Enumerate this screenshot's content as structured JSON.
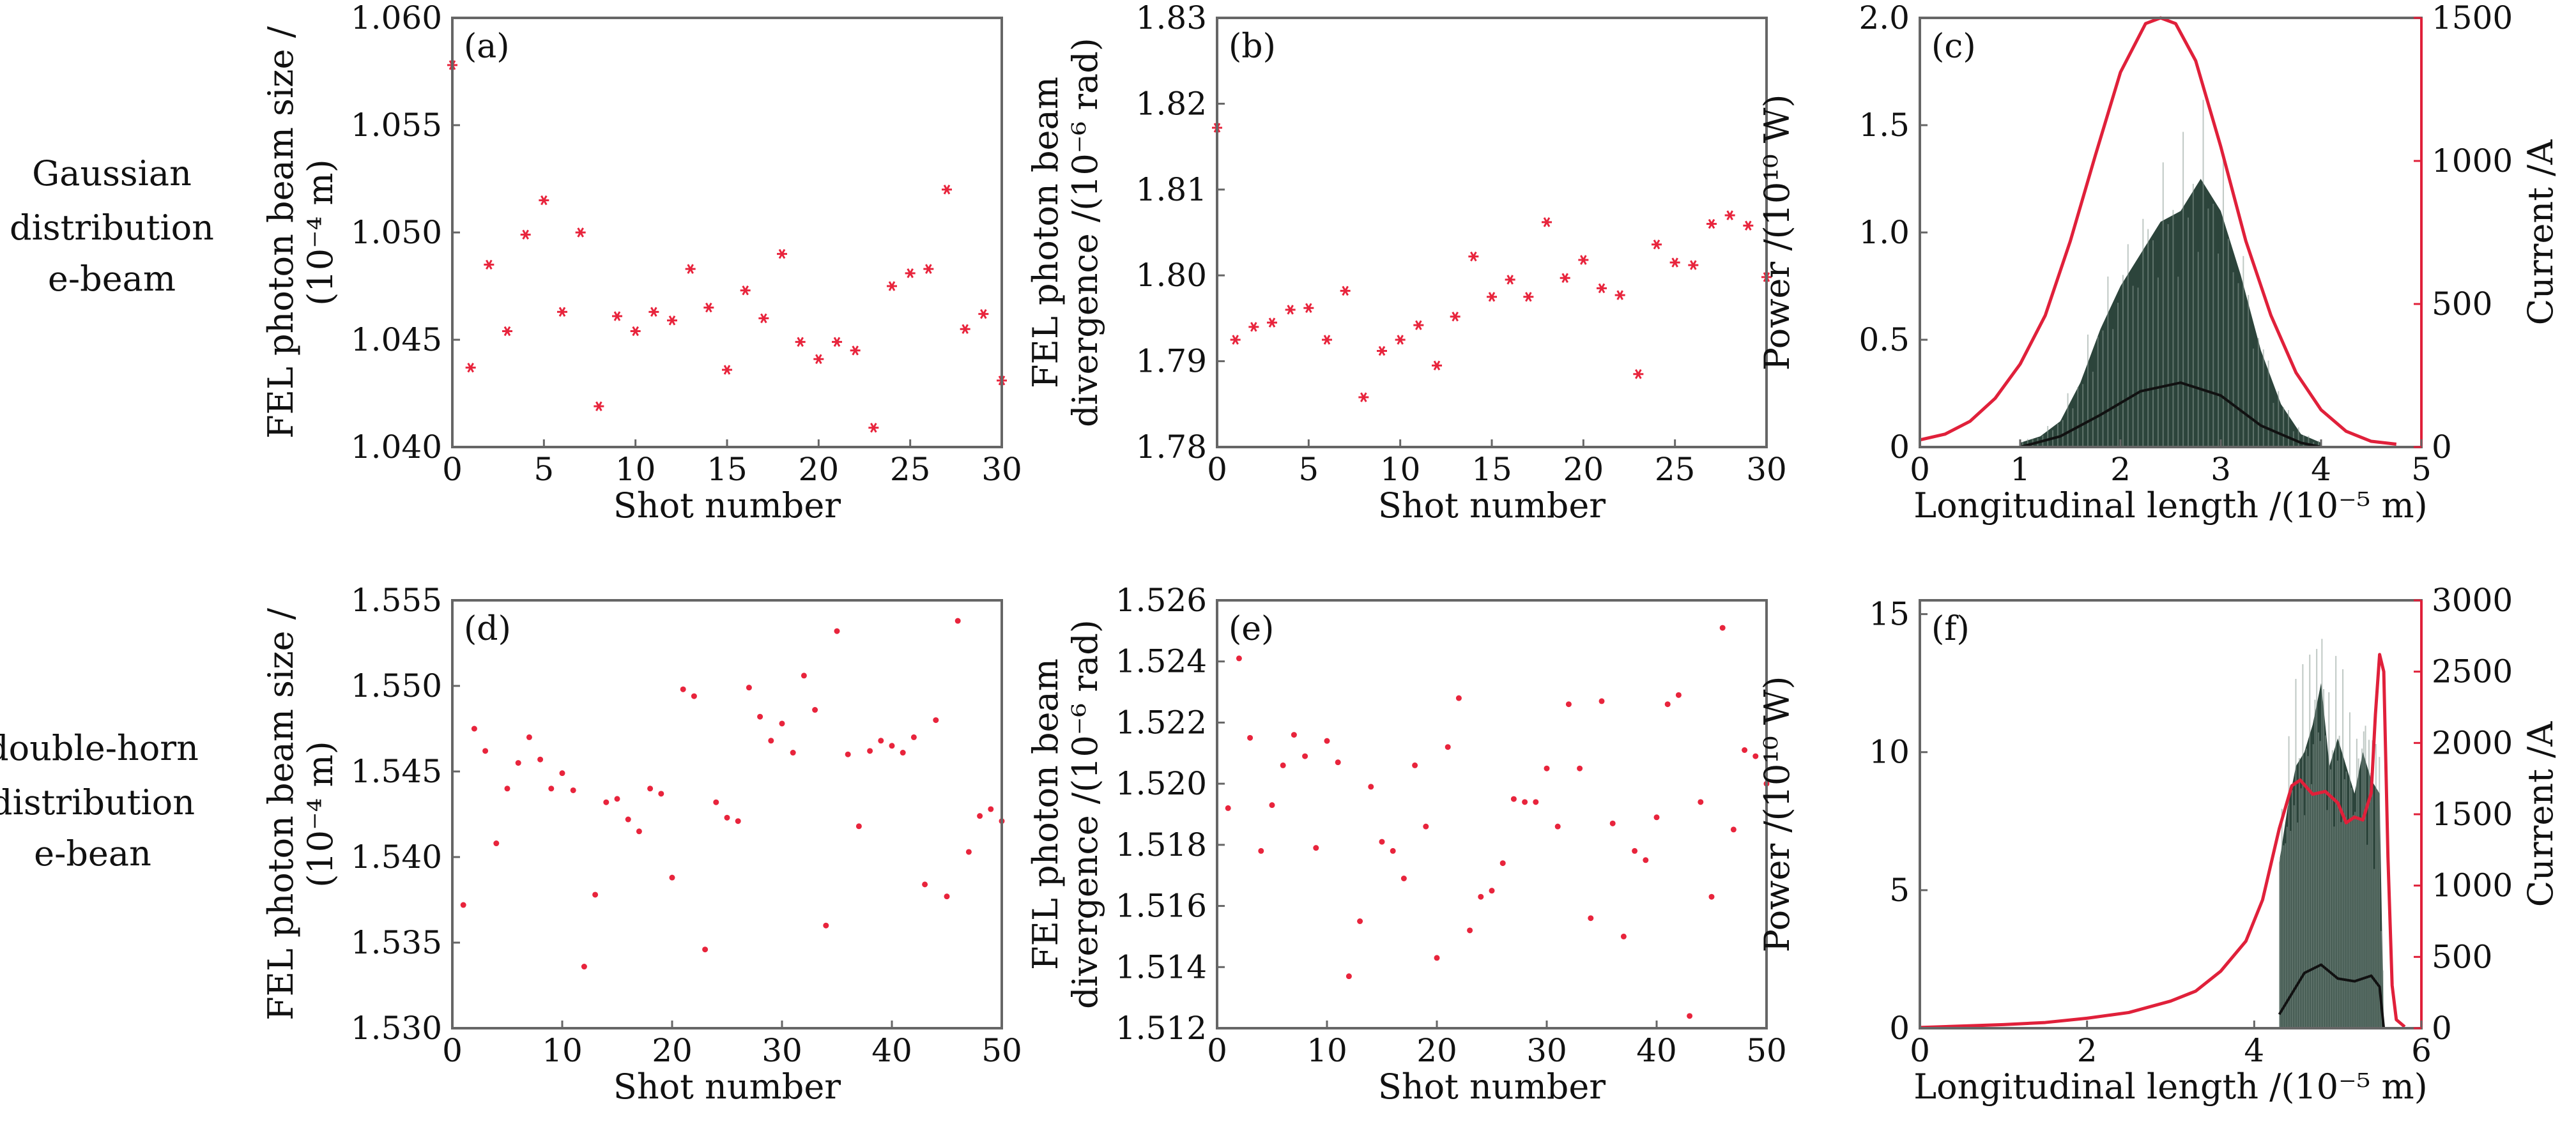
{
  "row_labels": [
    [
      "Gaussian",
      "distribution",
      "e-beam"
    ],
    [
      "double-horn",
      "distribution",
      "e-bean"
    ]
  ],
  "colors": {
    "marker": "#e8243c",
    "current_line": "#e0203a",
    "power_fill": "#213a30",
    "power_mean": "#111111",
    "frame": "#666666",
    "right_axis": "#e0203a"
  },
  "chart_data": [
    {
      "id": "a",
      "tag": "(a)",
      "type": "scatter",
      "marker": "asterisk",
      "ylabel": [
        "FEL photon beam size /",
        "(10⁻⁴ m)"
      ],
      "xlabel": "Shot number",
      "xlim": [
        0,
        30
      ],
      "ylim": [
        1.04,
        1.06
      ],
      "xticks": [
        "0",
        "5",
        "10",
        "15",
        "20",
        "25",
        "30"
      ],
      "yticks": [
        "1.040",
        "1.045",
        "1.050",
        "1.055",
        "1.060"
      ],
      "x": [
        0,
        1,
        2,
        3,
        4,
        5,
        6,
        7,
        8,
        9,
        10,
        11,
        12,
        13,
        14,
        15,
        16,
        17,
        18,
        19,
        20,
        21,
        22,
        23,
        24,
        25,
        26,
        27,
        28,
        29,
        30
      ],
      "y": [
        1.0578,
        1.0437,
        1.0485,
        1.0454,
        1.0499,
        1.0515,
        1.0463,
        1.05,
        1.0419,
        1.0461,
        1.0454,
        1.0463,
        1.0459,
        1.0483,
        1.0465,
        1.0436,
        1.0473,
        1.046,
        1.049,
        1.0449,
        1.0441,
        1.0449,
        1.0445,
        1.0409,
        1.0475,
        1.0481,
        1.0483,
        1.052,
        1.0455,
        1.0462,
        1.0431
      ]
    },
    {
      "id": "b",
      "tag": "(b)",
      "type": "scatter",
      "marker": "asterisk",
      "ylabel": [
        "FEL photon beam",
        "divergence /(10⁻⁶ rad)"
      ],
      "xlabel": "Shot number",
      "xlim": [
        0,
        30
      ],
      "ylim": [
        1.78,
        1.83
      ],
      "xticks": [
        "0",
        "5",
        "10",
        "15",
        "20",
        "25",
        "30"
      ],
      "yticks": [
        "1.78",
        "1.79",
        "1.80",
        "1.81",
        "1.82",
        "1.83"
      ],
      "x": [
        0,
        1,
        2,
        3,
        4,
        5,
        6,
        7,
        8,
        9,
        10,
        11,
        12,
        13,
        14,
        15,
        16,
        17,
        18,
        19,
        20,
        21,
        22,
        23,
        24,
        25,
        26,
        27,
        28,
        29,
        30
      ],
      "y": [
        1.8172,
        1.7925,
        1.794,
        1.7945,
        1.796,
        1.7962,
        1.7925,
        1.7982,
        1.7858,
        1.7912,
        1.7925,
        1.7942,
        1.7895,
        1.7952,
        1.8022,
        1.7975,
        1.7995,
        1.7975,
        1.8062,
        1.7997,
        1.8018,
        1.7985,
        1.7977,
        1.7885,
        1.8036,
        1.8015,
        1.8012,
        1.806,
        1.807,
        1.8058,
        1.7998
      ]
    },
    {
      "id": "c",
      "tag": "(c)",
      "type": "area",
      "ylabel": "Power /(10¹⁰ W)",
      "ylabel_right": "Current /A",
      "xlabel": "Longitudinal length /(10⁻⁵ m)",
      "xlim": [
        0,
        5
      ],
      "ylim": [
        0,
        2.0
      ],
      "ylim_right": [
        0,
        1500
      ],
      "xticks": [
        "0",
        "1",
        "2",
        "3",
        "4",
        "5"
      ],
      "yticks": [
        "0",
        "0.5",
        "1.0",
        "1.5",
        "2.0"
      ],
      "yticks_right": [
        "0",
        "500",
        "1000",
        "1500"
      ],
      "series": [
        {
          "role": "power envelope",
          "x": [
            1.0,
            1.2,
            1.4,
            1.6,
            1.8,
            2.0,
            2.2,
            2.4,
            2.6,
            2.8,
            3.0,
            3.2,
            3.4,
            3.6,
            3.8,
            4.0
          ],
          "y": [
            0.02,
            0.05,
            0.12,
            0.3,
            0.55,
            0.75,
            0.9,
            1.05,
            1.1,
            1.25,
            1.1,
            0.8,
            0.45,
            0.2,
            0.06,
            0.02
          ]
        },
        {
          "role": "power mean",
          "x": [
            1.0,
            1.4,
            1.8,
            2.2,
            2.6,
            3.0,
            3.4,
            3.8,
            4.0
          ],
          "y": [
            0.0,
            0.05,
            0.15,
            0.26,
            0.3,
            0.24,
            0.1,
            0.02,
            0.0
          ]
        },
        {
          "role": "current",
          "axis": "right",
          "x": [
            0,
            0.25,
            0.5,
            0.75,
            1.0,
            1.25,
            1.5,
            1.75,
            2.0,
            2.25,
            2.4,
            2.55,
            2.75,
            3.0,
            3.25,
            3.5,
            3.75,
            4.0,
            4.25,
            4.5,
            4.75
          ],
          "y": [
            25,
            45,
            90,
            170,
            290,
            460,
            720,
            1020,
            1310,
            1480,
            1500,
            1480,
            1350,
            1050,
            720,
            460,
            260,
            130,
            55,
            20,
            10
          ]
        }
      ]
    },
    {
      "id": "d",
      "tag": "(d)",
      "type": "scatter",
      "marker": "dot",
      "ylabel": [
        "FEL photon beam size /",
        "(10⁻⁴ m)"
      ],
      "xlabel": "Shot number",
      "xlim": [
        0,
        50
      ],
      "ylim": [
        1.53,
        1.555
      ],
      "xticks": [
        "0",
        "10",
        "20",
        "30",
        "40",
        "50"
      ],
      "yticks": [
        "1.530",
        "1.535",
        "1.540",
        "1.545",
        "1.550",
        "1.555"
      ],
      "x": [
        1,
        2,
        3,
        4,
        5,
        6,
        7,
        8,
        9,
        10,
        11,
        12,
        13,
        14,
        15,
        16,
        17,
        18,
        19,
        20,
        21,
        22,
        23,
        24,
        25,
        26,
        27,
        28,
        29,
        30,
        31,
        32,
        33,
        34,
        35,
        36,
        37,
        38,
        39,
        40,
        41,
        42,
        43,
        44,
        45,
        46,
        47,
        48,
        49,
        50
      ],
      "y": [
        1.5372,
        1.5475,
        1.5462,
        1.5408,
        1.544,
        1.5455,
        1.547,
        1.5457,
        1.544,
        1.5449,
        1.5439,
        1.5336,
        1.5378,
        1.5432,
        1.5434,
        1.5422,
        1.5415,
        1.544,
        1.5437,
        1.5388,
        1.5498,
        1.5494,
        1.5346,
        1.5432,
        1.5423,
        1.5421,
        1.5499,
        1.5482,
        1.5468,
        1.5478,
        1.5461,
        1.5506,
        1.5486,
        1.536,
        1.5532,
        1.546,
        1.5418,
        1.5462,
        1.5468,
        1.5465,
        1.5461,
        1.547,
        1.5384,
        1.548,
        1.5377,
        1.5538,
        1.5403,
        1.5424,
        1.5428,
        1.5421
      ]
    },
    {
      "id": "e",
      "tag": "(e)",
      "type": "scatter",
      "marker": "dot",
      "ylabel": [
        "FEL photon beam",
        "divergence /(10⁻⁶ rad)"
      ],
      "xlabel": "Shot number",
      "xlim": [
        0,
        50
      ],
      "ylim": [
        1.512,
        1.526
      ],
      "xticks": [
        "0",
        "10",
        "20",
        "30",
        "40",
        "50"
      ],
      "yticks": [
        "1.512",
        "1.514",
        "1.516",
        "1.518",
        "1.520",
        "1.522",
        "1.524",
        "1.526"
      ],
      "x": [
        1,
        2,
        3,
        4,
        5,
        6,
        7,
        8,
        9,
        10,
        11,
        12,
        13,
        14,
        15,
        16,
        17,
        18,
        19,
        20,
        21,
        22,
        23,
        24,
        25,
        26,
        27,
        28,
        29,
        30,
        31,
        32,
        33,
        34,
        35,
        36,
        37,
        38,
        39,
        40,
        41,
        42,
        43,
        44,
        45,
        46,
        47,
        48,
        49,
        50
      ],
      "y": [
        1.5192,
        1.5241,
        1.5215,
        1.5178,
        1.5193,
        1.5206,
        1.5216,
        1.5209,
        1.5179,
        1.5214,
        1.5207,
        1.5137,
        1.5155,
        1.5199,
        1.5181,
        1.5178,
        1.5169,
        1.5206,
        1.5186,
        1.5143,
        1.5212,
        1.5228,
        1.5152,
        1.5163,
        1.5165,
        1.5174,
        1.5195,
        1.5194,
        1.5194,
        1.5205,
        1.5186,
        1.5226,
        1.5205,
        1.5156,
        1.5227,
        1.5187,
        1.515,
        1.5178,
        1.5175,
        1.5189,
        1.5226,
        1.5229,
        1.5124,
        1.5194,
        1.5163,
        1.5251,
        1.5185,
        1.5211,
        1.5209,
        1.52
      ]
    },
    {
      "id": "f",
      "tag": "(f)",
      "type": "area",
      "ylabel": "Power /(10¹⁰ W)",
      "ylabel_right": "Current /A",
      "xlabel": "Longitudinal length /(10⁻⁵ m)",
      "xlim": [
        0,
        6
      ],
      "ylim": [
        0,
        15.5
      ],
      "ylim_right": [
        0,
        3000
      ],
      "xticks": [
        "0",
        "2",
        "4",
        "6"
      ],
      "yticks": [
        "0",
        "5",
        "10",
        "15"
      ],
      "yticks_right": [
        "0",
        "500",
        "1000",
        "1500",
        "2000",
        "2500",
        "3000"
      ],
      "series": [
        {
          "role": "power envelope",
          "x": [
            4.3,
            4.4,
            4.5,
            4.6,
            4.7,
            4.8,
            4.9,
            5.0,
            5.1,
            5.2,
            5.3,
            5.4,
            5.5,
            5.55
          ],
          "y": [
            6.0,
            8.0,
            9.5,
            10.0,
            11.0,
            12.5,
            9.5,
            10.5,
            9.5,
            8.5,
            10.0,
            9.0,
            8.5,
            0.0
          ]
        },
        {
          "role": "power mean",
          "x": [
            4.3,
            4.4,
            4.6,
            4.8,
            5.0,
            5.2,
            5.4,
            5.5,
            5.55
          ],
          "y": [
            0.5,
            1.0,
            2.0,
            2.3,
            1.8,
            1.7,
            1.9,
            1.5,
            0.0
          ]
        },
        {
          "role": "current",
          "axis": "right",
          "x": [
            0,
            0.5,
            1.0,
            1.5,
            2.0,
            2.5,
            3.0,
            3.3,
            3.6,
            3.9,
            4.1,
            4.3,
            4.45,
            4.55,
            4.7,
            4.85,
            5.0,
            5.1,
            5.2,
            5.3,
            5.4,
            5.45,
            5.5,
            5.55,
            5.6,
            5.65,
            5.7,
            5.8
          ],
          "y": [
            5,
            15,
            25,
            40,
            70,
            110,
            190,
            260,
            400,
            610,
            900,
            1400,
            1700,
            1740,
            1640,
            1660,
            1580,
            1440,
            1480,
            1460,
            1650,
            2200,
            2620,
            2500,
            1200,
            300,
            60,
            10
          ]
        }
      ]
    }
  ]
}
